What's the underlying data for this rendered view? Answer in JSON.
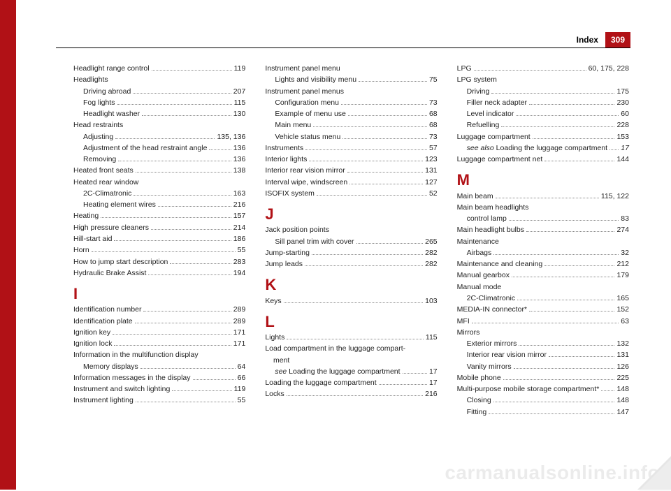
{
  "header": {
    "label": "Index",
    "page_number": "309"
  },
  "watermark": "carmanualsonline.info",
  "columns": [
    [
      {
        "t": "entry",
        "label": "Headlight range control",
        "page": "119"
      },
      {
        "t": "group",
        "label": "Headlights"
      },
      {
        "t": "sub",
        "label": "Driving abroad",
        "page": "207"
      },
      {
        "t": "sub",
        "label": "Fog lights",
        "page": "115"
      },
      {
        "t": "sub",
        "label": "Headlight washer",
        "page": "130"
      },
      {
        "t": "group",
        "label": "Head restraints"
      },
      {
        "t": "sub",
        "label": "Adjusting",
        "page": "135, 136"
      },
      {
        "t": "sub",
        "label": "Adjustment of the head restraint angle",
        "page": "136"
      },
      {
        "t": "sub",
        "label": "Removing",
        "page": "136"
      },
      {
        "t": "entry",
        "label": "Heated front seats",
        "page": "138"
      },
      {
        "t": "group",
        "label": "Heated rear window"
      },
      {
        "t": "sub",
        "label": "2C-Climatronic",
        "page": "163"
      },
      {
        "t": "sub",
        "label": "Heating element wires",
        "page": "216"
      },
      {
        "t": "entry",
        "label": "Heating",
        "page": "157"
      },
      {
        "t": "entry",
        "label": "High pressure cleaners",
        "page": "214"
      },
      {
        "t": "entry",
        "label": "Hill-start aid",
        "page": "186"
      },
      {
        "t": "entry",
        "label": "Horn",
        "page": "55"
      },
      {
        "t": "entry",
        "label": "How to jump start description",
        "page": "283"
      },
      {
        "t": "entry",
        "label": "Hydraulic Brake Assist",
        "page": "194"
      },
      {
        "t": "letter",
        "label": "I"
      },
      {
        "t": "entry",
        "label": "Identification number",
        "page": "289"
      },
      {
        "t": "entry",
        "label": "Identification plate",
        "page": "289"
      },
      {
        "t": "entry",
        "label": "Ignition key",
        "page": "171"
      },
      {
        "t": "entry",
        "label": "Ignition lock",
        "page": "171"
      },
      {
        "t": "group",
        "label": "Information in the multifunction display"
      },
      {
        "t": "sub",
        "label": "Memory displays",
        "page": "64"
      },
      {
        "t": "entry",
        "label": "Information messages in the display",
        "page": "66"
      },
      {
        "t": "entry",
        "label": "Instrument and switch lighting",
        "page": "119"
      },
      {
        "t": "entry",
        "label": "Instrument lighting",
        "page": "55"
      }
    ],
    [
      {
        "t": "group",
        "label": "Instrument panel menu"
      },
      {
        "t": "sub",
        "label": "Lights and visibility menu",
        "page": "75"
      },
      {
        "t": "group",
        "label": "Instrument panel menus"
      },
      {
        "t": "sub",
        "label": "Configuration menu",
        "page": "73"
      },
      {
        "t": "sub",
        "label": "Example of menu use",
        "page": "68"
      },
      {
        "t": "sub",
        "label": "Main menu",
        "page": "68"
      },
      {
        "t": "sub",
        "label": "Vehicle status menu",
        "page": "73"
      },
      {
        "t": "entry",
        "label": "Instruments",
        "page": "57"
      },
      {
        "t": "entry",
        "label": "Interior lights",
        "page": "123"
      },
      {
        "t": "entry",
        "label": "Interior rear vision mirror",
        "page": "131"
      },
      {
        "t": "entry",
        "label": "Interval wipe, windscreen",
        "page": "127"
      },
      {
        "t": "entry",
        "label": "ISOFIX system",
        "page": "52"
      },
      {
        "t": "letter",
        "label": "J"
      },
      {
        "t": "group",
        "label": "Jack position points"
      },
      {
        "t": "sub",
        "label": "Sill panel trim with cover",
        "page": "265"
      },
      {
        "t": "entry",
        "label": "Jump-starting",
        "page": "282"
      },
      {
        "t": "entry",
        "label": "Jump leads",
        "page": "282"
      },
      {
        "t": "letter",
        "label": "K"
      },
      {
        "t": "entry",
        "label": "Keys",
        "page": "103"
      },
      {
        "t": "letter",
        "label": "L"
      },
      {
        "t": "entry",
        "label": "Lights",
        "page": "115"
      },
      {
        "t": "group",
        "label": "Load compartment in the luggage compart-"
      },
      {
        "t": "group",
        "label": "    ment"
      },
      {
        "t": "sub",
        "label_html": "<span class='italic'>see</span> Loading the luggage compartment",
        "page": "17"
      },
      {
        "t": "entry",
        "label": "Loading the luggage compartment",
        "page": "17"
      },
      {
        "t": "entry",
        "label": "Locks",
        "page": "216"
      }
    ],
    [
      {
        "t": "entry",
        "label": "LPG",
        "page": "60, 175, 228"
      },
      {
        "t": "group",
        "label": "LPG system"
      },
      {
        "t": "sub",
        "label": "Driving",
        "page": "175"
      },
      {
        "t": "sub",
        "label": "Filler neck adapter",
        "page": "230"
      },
      {
        "t": "sub",
        "label": "Level indicator",
        "page": "60"
      },
      {
        "t": "sub",
        "label": "Refuelling",
        "page": "228"
      },
      {
        "t": "entry",
        "label": "Luggage compartment",
        "page": "153"
      },
      {
        "t": "sub",
        "label_html": "<span class='italic'>see also</span> Loading the luggage compartment",
        "page_italic": "17"
      },
      {
        "t": "entry",
        "label": "Luggage compartment net",
        "page": "144"
      },
      {
        "t": "letter",
        "label": "M"
      },
      {
        "t": "entry",
        "label": "Main beam",
        "page": "115, 122"
      },
      {
        "t": "group",
        "label": "Main beam headlights"
      },
      {
        "t": "sub",
        "label": "control lamp",
        "page": "83"
      },
      {
        "t": "entry",
        "label": "Main headlight bulbs",
        "page": "274"
      },
      {
        "t": "group",
        "label": "Maintenance"
      },
      {
        "t": "sub",
        "label": "Airbags",
        "page": "32"
      },
      {
        "t": "entry",
        "label": "Maintenance and cleaning",
        "page": "212"
      },
      {
        "t": "entry",
        "label": "Manual gearbox",
        "page": "179"
      },
      {
        "t": "group",
        "label": "Manual mode"
      },
      {
        "t": "sub",
        "label": "2C-Climatronic",
        "page": "165"
      },
      {
        "t": "entry",
        "label": "MEDIA-IN connector*",
        "page": "152"
      },
      {
        "t": "entry",
        "label": "MFI",
        "page": "63"
      },
      {
        "t": "group",
        "label": "Mirrors"
      },
      {
        "t": "sub",
        "label": "Exterior mirrors",
        "page": "132"
      },
      {
        "t": "sub",
        "label": "Interior rear vision mirror",
        "page": "131"
      },
      {
        "t": "sub",
        "label": "Vanity mirrors",
        "page": "126"
      },
      {
        "t": "entry",
        "label": "Mobile phone",
        "page": "225"
      },
      {
        "t": "entry",
        "label": "Multi-purpose mobile storage compartment*",
        "page": "148"
      },
      {
        "t": "sub",
        "label": "Closing",
        "page": "148"
      },
      {
        "t": "sub",
        "label": "Fitting",
        "page": "147"
      }
    ]
  ]
}
